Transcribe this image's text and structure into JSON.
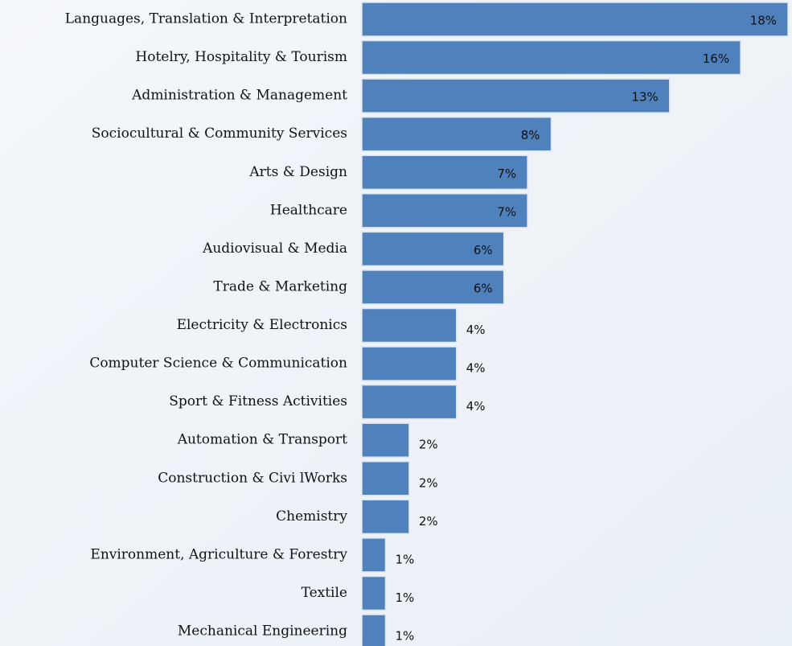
{
  "chart_data": {
    "type": "bar",
    "orientation": "horizontal",
    "color": "#4f81bd",
    "categories": [
      "Languages, Translation & Interpretation",
      "Hotelry, Hospitality & Tourism",
      "Administration & Management",
      "Sociocultural & Community Services",
      "Arts & Design",
      "Healthcare",
      "Audiovisual & Media",
      "Trade & Marketing",
      "Electricity & Electronics",
      "Computer Science & Communication",
      "Sport & Fitness Activities",
      "Automation & Transport",
      "Construction & Civi lWorks",
      "Chemistry",
      "Environment, Agriculture & Forestry",
      "Textile",
      "Mechanical Engineering"
    ],
    "values": [
      18,
      16,
      13,
      8,
      7,
      7,
      6,
      6,
      4,
      4,
      4,
      2,
      2,
      2,
      1,
      1,
      1
    ],
    "value_labels": [
      "18%",
      "16%",
      "13%",
      "8%",
      "7%",
      "7%",
      "6%",
      "6%",
      "4%",
      "4%",
      "4%",
      "2%",
      "2%",
      "2%",
      "1%",
      "1%",
      "1%"
    ]
  }
}
